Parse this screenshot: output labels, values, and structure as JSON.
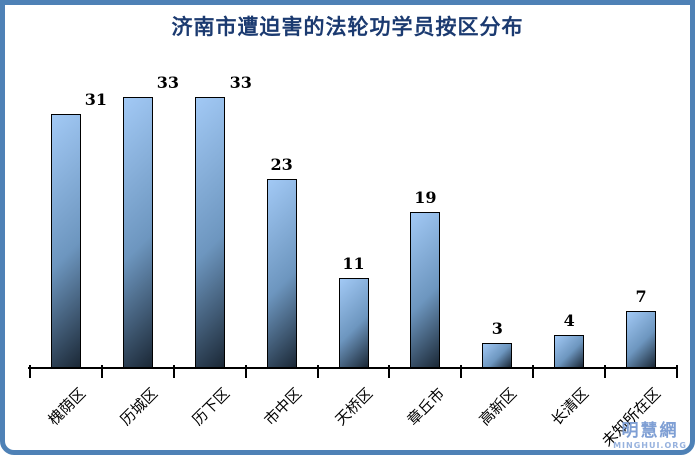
{
  "frame": {
    "border_color": "#4e81b6"
  },
  "title": {
    "text": "济南市遭迫害的法轮功学员按区分布",
    "color": "#1b3a70"
  },
  "watermark": {
    "site_name": "明慧網",
    "site_url_label": "MINGHUI.ORG",
    "name_color": "#7f9fd4",
    "url_color": "#97b2de"
  },
  "chart_data": {
    "type": "bar",
    "title": "济南市遭迫害的法轮功学员按区分布",
    "categories": [
      "槐荫区",
      "历城区",
      "历下区",
      "市中区",
      "天桥区",
      "章丘市",
      "高新区",
      "长清区",
      "未知所在区"
    ],
    "values": [
      31,
      33,
      33,
      23,
      11,
      19,
      3,
      4,
      7
    ],
    "xlabel": "",
    "ylabel": "",
    "ylim": [
      0,
      35
    ],
    "grid": false,
    "legend": false,
    "data_labels": "outside-end",
    "label_x_offsets": [
      30,
      30,
      31,
      0,
      0,
      0,
      0,
      0,
      0
    ],
    "bar_style": {
      "gradient_light": "#a2c9f5",
      "gradient_mid": "#6d96bf",
      "gradient_dark": "#1b2836",
      "border_color": "#000000"
    },
    "axis_color": "#000000",
    "data_label_color": "#000000"
  }
}
